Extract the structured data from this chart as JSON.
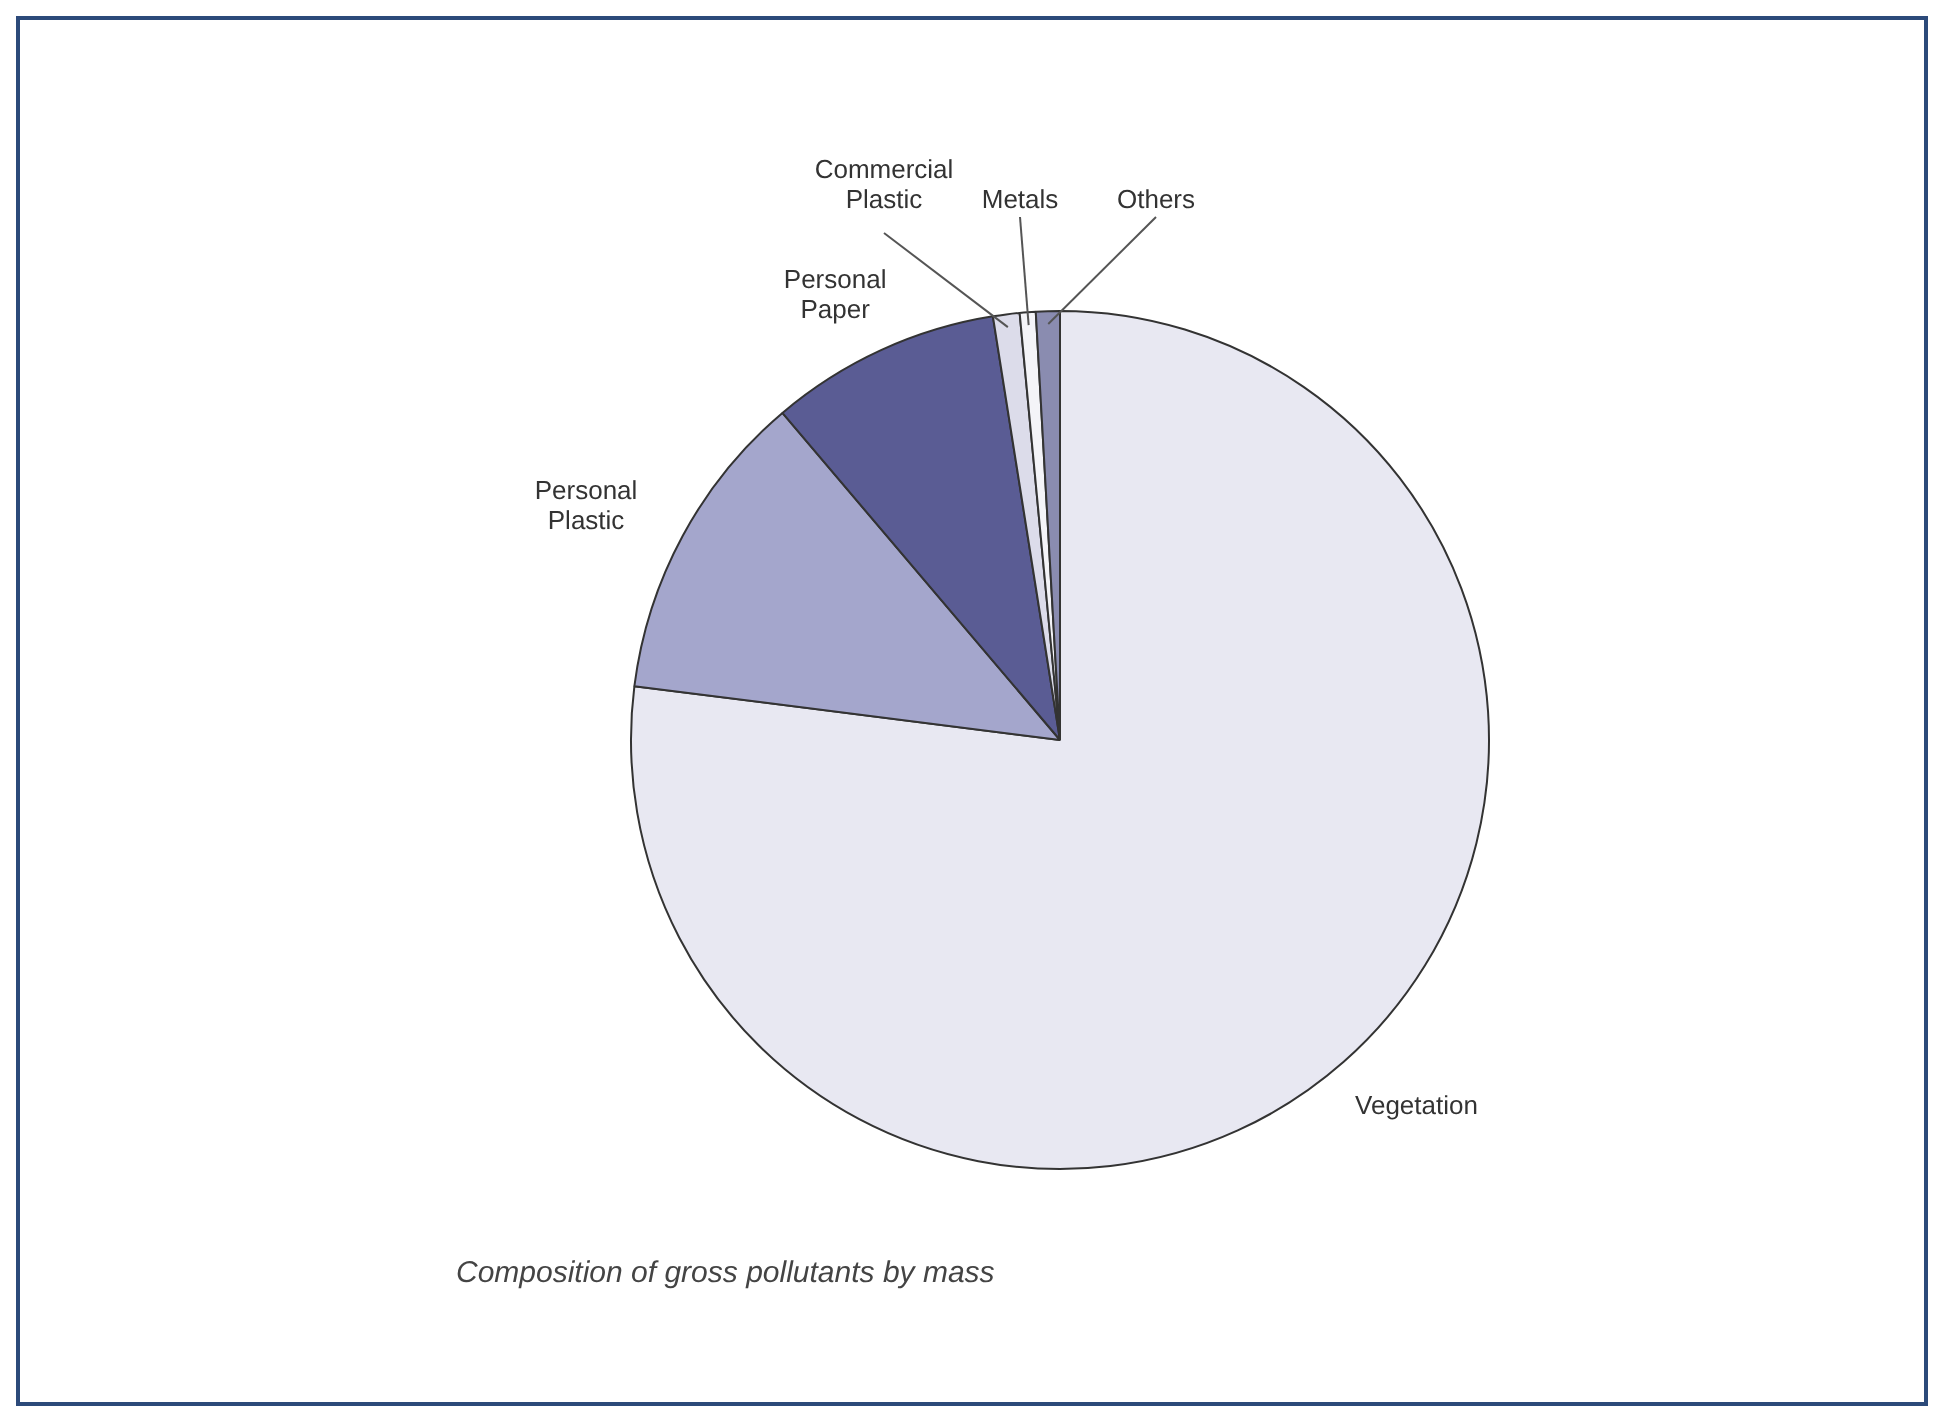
{
  "chart_data": {
    "type": "pie",
    "categories": [
      "Vegetation",
      "Personal Plastic",
      "Personal Paper",
      "Commercial Plastic",
      "Metals",
      "Others"
    ],
    "values": [
      77,
      11.8,
      8.7,
      1.0,
      0.6,
      0.9
    ],
    "colors": [
      "#e8e8f2",
      "#a4a6cc",
      "#5a5c94",
      "#dcdcea",
      "#f4f4f8",
      "#8a8cb0"
    ],
    "legend": false,
    "annotations": [
      "Composition of gross pollutants by mass"
    ]
  }
}
